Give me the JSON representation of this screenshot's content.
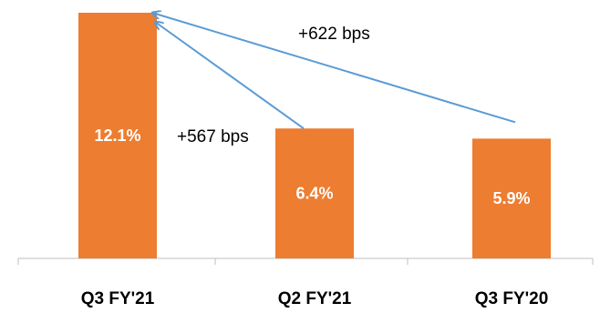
{
  "chart_data": {
    "type": "bar",
    "categories": [
      "Q3 FY'21",
      "Q2 FY'21",
      "Q3 FY'20"
    ],
    "values": [
      12.1,
      6.4,
      5.9
    ],
    "data_labels": [
      "12.1%",
      "6.4%",
      "5.9%"
    ],
    "ylim": [
      0,
      12.1
    ],
    "grid": false,
    "legend": "none",
    "annotations": [
      {
        "text": "+567 bps",
        "from_category": "Q2 FY'21",
        "to_category": "Q3 FY'21"
      },
      {
        "text": "+622 bps",
        "from_category": "Q3 FY'20",
        "to_category": "Q3 FY'21"
      }
    ],
    "colors": {
      "bar": "#ED7D31",
      "bar_label": "#FFFFFF",
      "arrow": "#5B9BD5",
      "axis": "#BFBFBF",
      "text": "#000000"
    }
  }
}
